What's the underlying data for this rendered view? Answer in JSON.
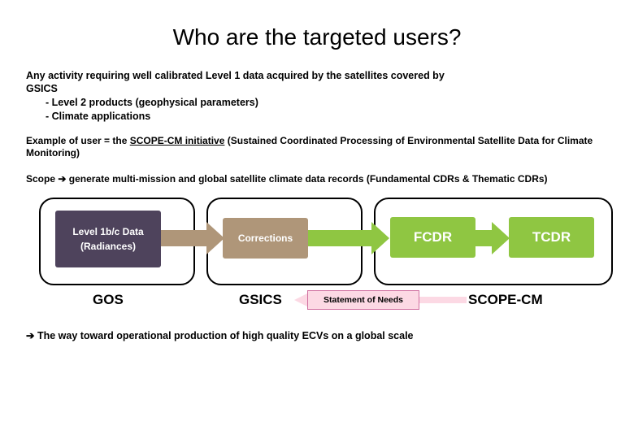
{
  "title": "Who are the targeted users?",
  "lead": "Any activity requiring well calibrated Level 1 data acquired by the satellites covered by",
  "gsics_word": "GSICS",
  "bullets": [
    "-  Level 2 products (geophysical parameters)",
    "-  Climate applications"
  ],
  "example": {
    "prefix": "Example of user = the ",
    "initiative": "SCOPE-CM initiative",
    "suffix": " (Sustained Coordinated Processing of Environmental Satellite Data for Climate Monitoring)"
  },
  "scope": "Scope ➔ generate multi-mission and global satellite climate data records (Fundamental CDRs & Thematic CDRs)",
  "diagram": {
    "level1_line1": "Level 1b/c Data",
    "level1_line2": "(Radiances)",
    "corrections": "Corrections",
    "fcdr": "FCDR",
    "tcdr": "TCDR",
    "gos": "GOS",
    "gsics": "GSICS",
    "scopecm": "SCOPE-CM",
    "statement": "Statement of Needs",
    "colors": {
      "level1_bg": "#4e435c",
      "corrections_bg": "#af9679",
      "cdr_bg": "#8fc642",
      "statement_bg": "#fcd9e4",
      "border": "#000000"
    }
  },
  "footer": "➔ The way toward operational production of high quality ECVs on a global scale"
}
